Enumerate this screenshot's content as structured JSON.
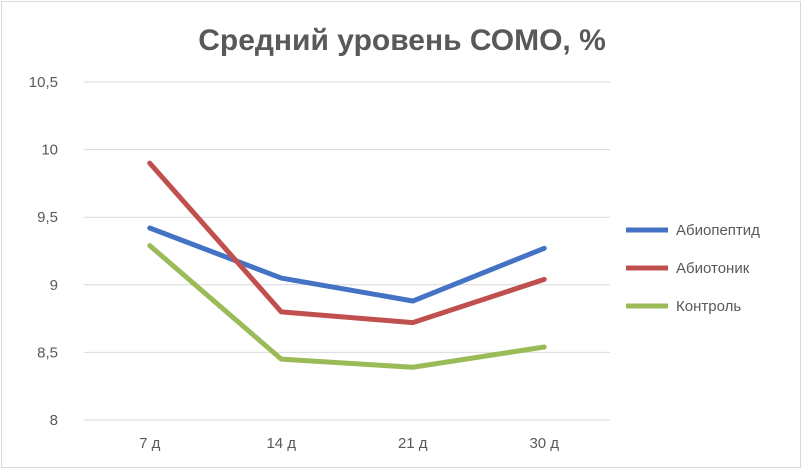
{
  "chart_data": {
    "type": "line",
    "title": "Средний уровень СОМО, %",
    "categories": [
      "7 д",
      "14 д",
      "21 д",
      "30 д"
    ],
    "ylim": [
      8,
      10.5
    ],
    "yticks": [
      "8",
      "8,5",
      "9",
      "9,5",
      "10",
      "10,5"
    ],
    "grid": true,
    "legend_position": "right",
    "series": [
      {
        "name": "Абиопептид",
        "color": "#4472c4",
        "values": [
          9.42,
          9.05,
          8.88,
          9.27
        ]
      },
      {
        "name": "Абиотоник",
        "color": "#c0504d",
        "values": [
          9.9,
          8.8,
          8.72,
          9.04
        ]
      },
      {
        "name": "Контроль",
        "color": "#9bbb59",
        "values": [
          9.29,
          8.45,
          8.39,
          8.54
        ]
      }
    ]
  }
}
